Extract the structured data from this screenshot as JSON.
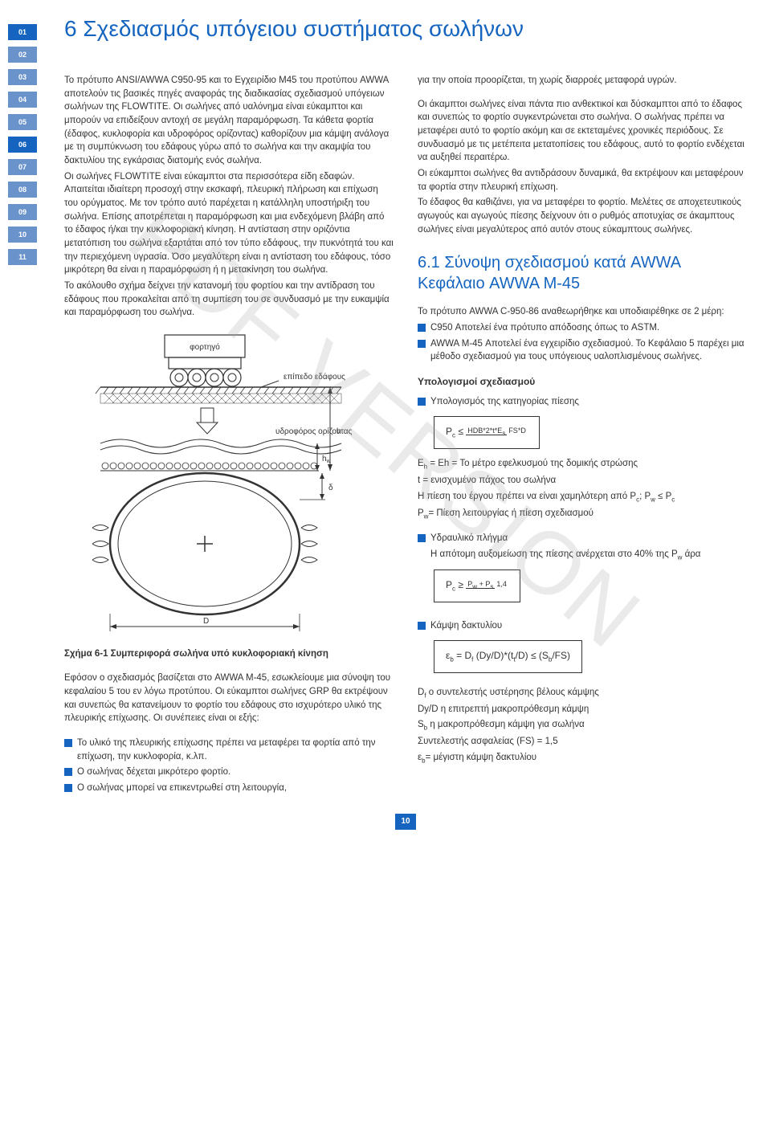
{
  "sidebar": {
    "items": [
      {
        "num": "01",
        "style": "highlighted"
      },
      {
        "num": "02",
        "style": "dim"
      },
      {
        "num": "03",
        "style": "dim"
      },
      {
        "num": "04",
        "style": "dim"
      },
      {
        "num": "05",
        "style": "dim"
      },
      {
        "num": "06",
        "style": "highlighted"
      },
      {
        "num": "07",
        "style": "dim"
      },
      {
        "num": "08",
        "style": "dim"
      },
      {
        "num": "09",
        "style": "dim"
      },
      {
        "num": "10",
        "style": "dim"
      },
      {
        "num": "11",
        "style": "dim"
      }
    ]
  },
  "title": "6 Σχεδιασμός υπόγειου συστήματος σωλήνων",
  "left": {
    "p1": "Το πρότυπο ANSI/AWWA C950-95 και το Εγχειρίδιο M45 του προτύπου AWWA αποτελούν τις βασικές πηγές αναφοράς της διαδικασίας σχεδιασμού υπόγειων σωλήνων της FLOWTITE. Οι σωλήνες από υαλόνημα είναι εύκαμπτοι και μπορούν να επιδείξουν αντοχή σε μεγάλη παραμόρφωση. Τα κάθετα φορτία (έδαφος, κυκλοφορία και υδροφόρος ορίζοντας) καθορίζουν μια κάμψη ανάλογα με τη συμπύκνωση του εδάφους γύρω από το σωλήνα και την ακαμψία του δακτυλίου της εγκάρσιας διατομής ενός σωλήνα.",
    "p2": "Οι σωλήνες FLOWTITE είναι εύκαμπτοι στα περισσότερα είδη εδαφών. Απαιτείται ιδιαίτερη προσοχή στην εκσκαφή, πλευρική πλήρωση και επίχωση του ορύγματος. Με τον τρόπο αυτό παρέχεται η κατάλληλη υποστήριξη του σωλήνα. Επίσης αποτρέπεται η παραμόρφωση και μια ενδεχόμενη βλάβη από το έδαφος ή/και την κυκλοφοριακή κίνηση. Η αντίσταση στην οριζόντια μετατόπιση του σωλήνα εξαρτάται από τον τύπο εδάφους, την πυκνότητά του και την περιεχόμενη υγρασία. Όσο μεγαλύτερη είναι η αντίσταση του εδάφους, τόσο μικρότερη θα είναι η παραμόρφωση ή η μετακίνηση του σωλήνα.",
    "p3": "Το ακόλουθο σχήμα δείχνει την κατανομή του φορτίου και την αντίδραση του εδάφους που προκαλείται από τη συμπίεση του σε συνδυασμό με την ευκαμψία και παραμόρφωση του σωλήνα.",
    "fig_labels": {
      "truck": "φορτηγό",
      "ground": "επίπεδο εδάφους",
      "water": "υδροφόρος ορίζοντας",
      "h": "h",
      "hw": "hw",
      "delta": "δ",
      "D": "D"
    },
    "caption": "Σχήμα 6-1 Συμπεριφορά σωλήνα υπό κυκλοφοριακή κίνηση",
    "p4": "Εφόσον ο σχεδιασμός βασίζεται στο AWWA M-45, εσωκλείουμε μια σύνοψη του κεφαλαίου 5 του εν λόγω προτύπου. Οι εύκαμπτοι σωλήνες GRP θα εκτρέψουν και συνεπώς θα κατανείμουν το φορτίο του εδάφους στο ισχυρότερο υλικό της πλευρικής επίχωσης. Οι συνέπειες είναι οι εξής:",
    "bullets": [
      "Το υλικό της πλευρικής επίχωσης πρέπει να μεταφέρει τα φορτία από την επίχωση, την κυκλοφορία, κ.λπ.",
      "Ο σωλήνας δέχεται μικρότερο φορτίο.",
      "Ο σωλήνας μπορεί να επικεντρωθεί στη λειτουργία,"
    ]
  },
  "right": {
    "p1": "για την οποία προορίζεται, τη χωρίς διαρροές μεταφορά υγρών.",
    "p2": "Οι άκαμπτοι σωλήνες είναι πάντα πιο ανθεκτικοί και δύσκαμπτοι από το έδαφος και συνεπώς το φορτίο συγκεντρώνεται στο σωλήνα. Ο σωλήνας πρέπει να μεταφέρει αυτό το φορτίο ακόμη και σε εκτεταμένες χρονικές περιόδους. Σε συνδυασμό με τις μετέπειτα μετατοπίσεις του εδάφους, αυτό το φορτίο ενδέχεται να αυξηθεί περαιτέρω.",
    "p3": "Οι εύκαμπτοι σωλήνες θα αντιδράσουν δυναμικά, θα εκτρέψουν και μεταφέρουν τα φορτία στην πλευρική επίχωση.",
    "p4": "Το έδαφος θα καθιζάνει, για να μεταφέρει το φορτίο. Μελέτες σε αποχετευτικούς αγωγούς και αγωγούς πίεσης δείχνουν ότι ο ρυθμός αποτυχίας σε άκαμπτους σωλήνες είναι μεγαλύτερος από αυτόν στους εύκαμπτους σωλήνες.",
    "section": "6.1 Σύνοψη σχεδιασμού κατά AWWA Κεφάλαιο AWWA M-45",
    "p5": "Το πρότυπο AWWA C-950-86 αναθεωρήθηκε και υποδιαιρέθηκε σε 2 μέρη:",
    "s1b1": "C950 Αποτελεί ένα πρότυπο απόδοσης όπως το ASTM.",
    "s1b2": "AWWA M-45 Αποτελεί ένα εγχειρίδιο σχεδιασμού. Το Κεφάλαιο 5 παρέχει μια μέθοδο σχεδιασμού για τους υπόγειους υαλοπλισμένους σωλήνες.",
    "subhead": "Υπολογισμοί σχεδιασμού",
    "calc1_title": "Υπολογισμός της κατηγορίας πίεσης",
    "calc1_def": "Eh = Το μέτρο εφελκυσμού της δομικής στρώσης",
    "calc1_def2": "t = ενισχυμένο πάχος του σωλήνα",
    "calc1_def3": "Η πίεση του έργου πρέπει να είναι χαμηλότερη από Pc; Pw ≤ Pc",
    "calc1_def4": "Pw= Πίεση λειτουργίας ή πίεση σχεδιασμού",
    "calc2_title": "Υδραυλικό πλήγμα",
    "calc2_text": "Η απότομη αυξομείωση της πίεσης ανέρχεται στο 40% της Pw άρα",
    "calc3_title": "Κάμψη δακτυλίου",
    "calc3_formula": "εb = Df (Dy/D)*(tt/D) ≤ (Sb/FS)",
    "calc3_def1": "Df ο συντελεστής υστέρησης βέλους κάμψης",
    "calc3_def2": "Dy/D η επιτρεπτή μακροπρόθεσμη κάμψη",
    "calc3_def3": "Sb η μακροπρόθεσμη κάμψη για σωλήνα",
    "calc3_def4": "Συντελεστής ασφαλείας (FS) = 1,5",
    "calc3_def5": "εb= μέγιστη κάμψη δακτυλίου"
  },
  "watermark": "PDF VERSION",
  "page_number": "10",
  "colors": {
    "primary": "#1565c0",
    "dim": "#6a93cc",
    "text": "#333333",
    "watermark": "rgba(160,160,160,0.22)"
  }
}
